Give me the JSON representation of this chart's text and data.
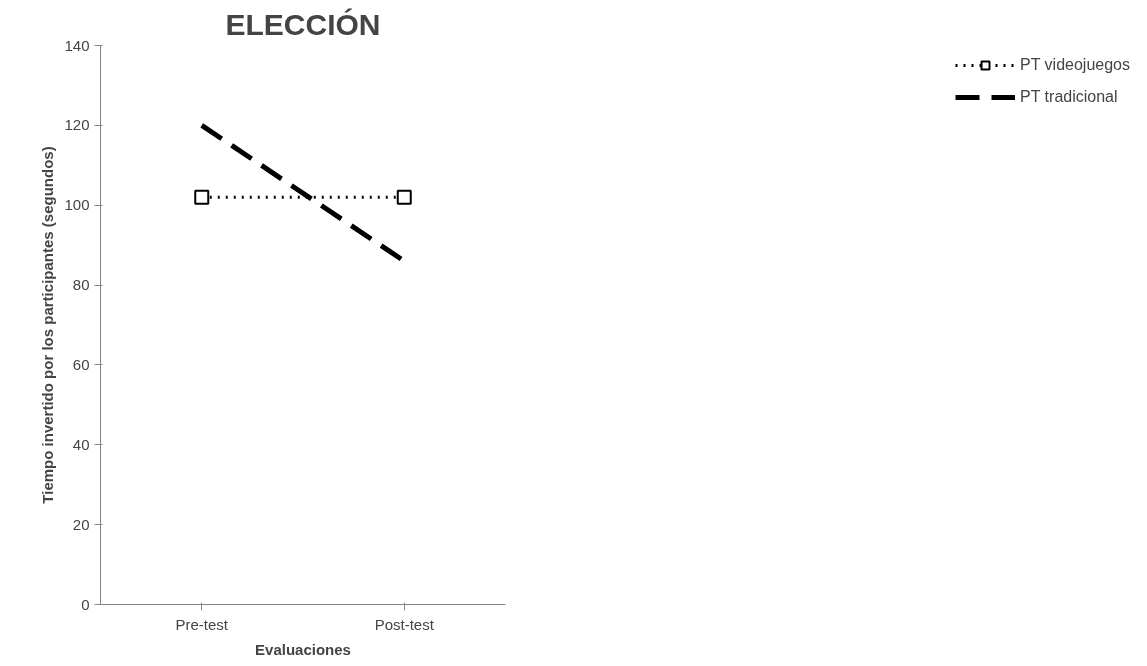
{
  "chart_data": {
    "type": "line",
    "title": "ELECCIÓN",
    "xlabel": "Evaluaciones",
    "ylabel": "Tiempo invertido por los participantes (segundos)",
    "categories": [
      "Pre-test",
      "Post-test"
    ],
    "series": [
      {
        "name": "PT videojuegos",
        "color": "#000000",
        "values": [
          102,
          102
        ],
        "marker": "square",
        "line_style": "dotted"
      },
      {
        "name": "PT tradicional",
        "color": "#000000",
        "values": [
          120,
          86
        ],
        "marker": "none",
        "line_style": "dashed"
      }
    ],
    "ylim": [
      0,
      140
    ],
    "yticks": [
      0,
      20,
      40,
      60,
      80,
      100,
      120,
      140
    ],
    "grid": false,
    "legend": "right"
  }
}
